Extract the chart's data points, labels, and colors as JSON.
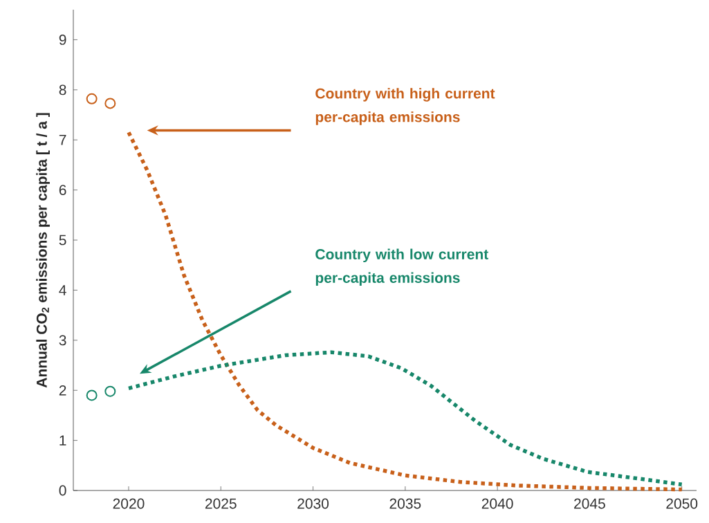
{
  "chart_data": {
    "type": "line",
    "ylabel": "Annual CO$_{2}$ emissions per capita [ t / a ]",
    "xlim": [
      2017,
      2050.8
    ],
    "ylim": [
      0,
      9.6
    ],
    "xticks": [
      2020,
      2025,
      2030,
      2035,
      2040,
      2045,
      2050
    ],
    "yticks": [
      0,
      1,
      2,
      3,
      4,
      5,
      6,
      7,
      8,
      9
    ],
    "series": [
      {
        "type": "scatter",
        "marker": "circle",
        "color": "#c8601a",
        "x": [
          2018,
          2019
        ],
        "values": [
          7.82,
          7.73
        ]
      },
      {
        "type": "scatter",
        "marker": "circle",
        "color": "#17876a",
        "x": [
          2018,
          2019
        ],
        "values": [
          1.9,
          1.98
        ]
      },
      {
        "line_style": "dotted",
        "color": "#c8601a",
        "x": [
          2020,
          2021,
          2022,
          2023,
          2024,
          2025,
          2026,
          2027,
          2028,
          2030,
          2032,
          2035,
          2038,
          2041,
          2045,
          2050
        ],
        "values": [
          7.15,
          6.4,
          5.5,
          4.3,
          3.4,
          2.7,
          2.1,
          1.6,
          1.3,
          0.85,
          0.55,
          0.3,
          0.17,
          0.1,
          0.05,
          0.02
        ]
      },
      {
        "line_style": "dotted",
        "color": "#17876a",
        "x": [
          2020,
          2022.5,
          2025,
          2028.5,
          2031,
          2033,
          2034.8,
          2036.4,
          2038.8,
          2040.7,
          2042.5,
          2044.9,
          2048,
          2050
        ],
        "values": [
          2.04,
          2.28,
          2.49,
          2.7,
          2.76,
          2.68,
          2.44,
          2.09,
          1.39,
          0.91,
          0.63,
          0.37,
          0.22,
          0.12
        ]
      }
    ],
    "annotations": [
      "Country with high current per-capita emissions",
      "Country with low current per-capita emissions"
    ]
  }
}
